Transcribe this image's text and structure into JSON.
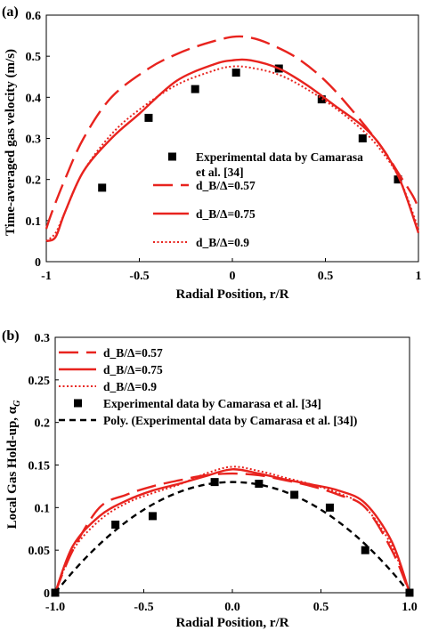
{
  "chart_data": [
    {
      "type": "line",
      "panel_label": "(a)",
      "title": "",
      "xlabel": "Radial Position, r/R",
      "ylabel": "Time-averaged gas velocity (m/s)",
      "xlim": [
        -1,
        1
      ],
      "ylim": [
        0,
        0.6
      ],
      "xticks": [
        -1,
        -0.5,
        0,
        0.5,
        1
      ],
      "xtick_labels": [
        "-1",
        "-0.5",
        "0",
        "0.5",
        "1"
      ],
      "yticks": [
        0,
        0.1,
        0.2,
        0.3,
        0.4,
        0.5,
        0.6
      ],
      "ytick_labels": [
        "0",
        "0.1",
        "0.2",
        "0.3",
        "0.4",
        "0.5",
        "0.6"
      ],
      "grid": false,
      "legend_position": "center-right",
      "series": [
        {
          "name": "Experimental data by Camarasa et al. [34]",
          "legend_lines": [
            "Experimental data by Camarasa",
            "et al. [34]"
          ],
          "style": "square-markers",
          "color": "#000000",
          "x": [
            -0.7,
            -0.45,
            -0.2,
            0.02,
            0.25,
            0.48,
            0.7,
            0.89
          ],
          "y": [
            0.18,
            0.35,
            0.42,
            0.46,
            0.47,
            0.395,
            0.3,
            0.2
          ]
        },
        {
          "name": "d_B/Δ=0.57",
          "style": "long-dash",
          "color": "#e8231e",
          "x": [
            -1,
            -0.97,
            -0.9,
            -0.8,
            -0.65,
            -0.45,
            -0.3,
            -0.15,
            0,
            0.1,
            0.2,
            0.35,
            0.5,
            0.65,
            0.8,
            0.9,
            0.97,
            1
          ],
          "y": [
            0.08,
            0.12,
            0.2,
            0.3,
            0.4,
            0.47,
            0.505,
            0.53,
            0.547,
            0.545,
            0.53,
            0.495,
            0.44,
            0.365,
            0.28,
            0.21,
            0.16,
            0.13
          ]
        },
        {
          "name": "d_B/Δ=0.75",
          "style": "solid",
          "color": "#e8231e",
          "x": [
            -1,
            -0.95,
            -0.9,
            -0.8,
            -0.65,
            -0.5,
            -0.3,
            -0.1,
            0,
            0.1,
            0.25,
            0.4,
            0.55,
            0.7,
            0.8,
            0.9,
            1
          ],
          "y": [
            0.05,
            0.06,
            0.12,
            0.22,
            0.3,
            0.36,
            0.44,
            0.48,
            0.49,
            0.49,
            0.47,
            0.43,
            0.38,
            0.33,
            0.28,
            0.2,
            0.07
          ]
        },
        {
          "name": "d_B/Δ=0.9",
          "style": "dotted",
          "color": "#e8231e",
          "x": [
            -1,
            -0.95,
            -0.9,
            -0.8,
            -0.65,
            -0.5,
            -0.3,
            -0.1,
            0,
            0.1,
            0.25,
            0.4,
            0.55,
            0.7,
            0.8,
            0.9,
            1
          ],
          "y": [
            0.05,
            0.07,
            0.12,
            0.22,
            0.31,
            0.37,
            0.43,
            0.465,
            0.475,
            0.472,
            0.455,
            0.42,
            0.375,
            0.32,
            0.27,
            0.2,
            0.08
          ]
        }
      ]
    },
    {
      "type": "line",
      "panel_label": "(b)",
      "title": "",
      "xlabel": "Radial Position, r/R",
      "ylabel": "Local Gas Hold-up, α",
      "ylabel_sub": "G",
      "xlim": [
        -1,
        1
      ],
      "ylim": [
        0,
        0.3
      ],
      "xticks": [
        -1,
        -0.5,
        0,
        0.5,
        1
      ],
      "xtick_labels": [
        "-1.0",
        "-0.5",
        "0.0",
        "0.5",
        "1.0"
      ],
      "yticks": [
        0,
        0.05,
        0.1,
        0.15,
        0.2,
        0.25,
        0.3
      ],
      "ytick_labels": [
        "0",
        "0.05",
        "0.1",
        "0.15",
        "0.2",
        "0.25",
        "0.3"
      ],
      "grid": false,
      "legend_position": "top-left",
      "series": [
        {
          "name": "d_B/Δ=0.57",
          "style": "long-dash",
          "color": "#e8231e",
          "x": [
            -1,
            -0.9,
            -0.75,
            -0.6,
            -0.45,
            -0.3,
            -0.15,
            0,
            0.15,
            0.3,
            0.45,
            0.6,
            0.75,
            0.9,
            1
          ],
          "y": [
            0,
            0.05,
            0.1,
            0.115,
            0.125,
            0.132,
            0.138,
            0.14,
            0.138,
            0.132,
            0.125,
            0.115,
            0.1,
            0.05,
            0
          ]
        },
        {
          "name": "d_B/Δ=0.75",
          "style": "solid",
          "color": "#e8231e",
          "x": [
            -1,
            -0.9,
            -0.75,
            -0.6,
            -0.45,
            -0.3,
            -0.15,
            0,
            0.15,
            0.3,
            0.45,
            0.6,
            0.75,
            0.9,
            1
          ],
          "y": [
            0,
            0.055,
            0.09,
            0.108,
            0.12,
            0.128,
            0.137,
            0.145,
            0.14,
            0.133,
            0.127,
            0.12,
            0.105,
            0.06,
            0
          ]
        },
        {
          "name": "d_B/Δ=0.9",
          "style": "dotted",
          "color": "#e8231e",
          "x": [
            -1,
            -0.9,
            -0.75,
            -0.6,
            -0.45,
            -0.3,
            -0.15,
            0,
            0.15,
            0.3,
            0.45,
            0.6,
            0.75,
            0.9,
            1
          ],
          "y": [
            0,
            0.05,
            0.085,
            0.105,
            0.117,
            0.127,
            0.14,
            0.148,
            0.143,
            0.135,
            0.127,
            0.117,
            0.1,
            0.055,
            0
          ]
        },
        {
          "name": "Experimental data by Camarasa et al. [34]",
          "style": "square-markers",
          "color": "#000000",
          "x": [
            -1,
            -0.66,
            -0.45,
            -0.1,
            0.15,
            0.35,
            0.55,
            0.75,
            1
          ],
          "y": [
            0,
            0.08,
            0.09,
            0.13,
            0.128,
            0.115,
            0.1,
            0.05,
            0
          ]
        },
        {
          "name": "Poly. (Experimental data by Camarasa et al. [34])",
          "style": "short-dash",
          "color": "#000000",
          "x": [
            -1,
            -0.9,
            -0.8,
            -0.7,
            -0.6,
            -0.5,
            -0.4,
            -0.3,
            -0.2,
            -0.1,
            0,
            0.1,
            0.2,
            0.3,
            0.4,
            0.5,
            0.6,
            0.7,
            0.8,
            0.9,
            1
          ],
          "y": [
            0,
            0.0247,
            0.0468,
            0.0663,
            0.0832,
            0.0975,
            0.1092,
            0.1183,
            0.1248,
            0.1287,
            0.13,
            0.1287,
            0.1248,
            0.1183,
            0.1092,
            0.0975,
            0.0832,
            0.0663,
            0.0468,
            0.0247,
            0
          ]
        }
      ]
    }
  ]
}
